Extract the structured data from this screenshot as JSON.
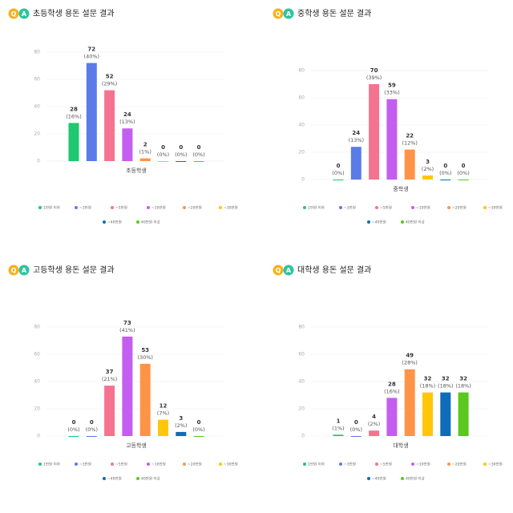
{
  "logo": {
    "q": "Q",
    "a": "A"
  },
  "chart_data": [
    {
      "type": "bar",
      "title": "초등학생 용돈 설문 결과",
      "x_label": "초등학생",
      "categories": [
        "1만원 이하",
        "~3만원",
        "~5만원",
        "~10만원",
        "~20만원",
        "~30만원",
        "~40만원",
        "40만원 이상"
      ],
      "colors": [
        "#1ec86e",
        "#5b7be8",
        "#f5738f",
        "#c45ef0",
        "#ff9447",
        "#ffc60a",
        "#0e6cb8",
        "#5ac81e"
      ],
      "values": [
        28,
        72,
        52,
        24,
        2,
        0,
        0,
        0
      ],
      "percent_labels": [
        "(16%)",
        "(40%)",
        "(29%)",
        "(13%)",
        "(1%)",
        "(0%)",
        "(0%)",
        "(0%)"
      ],
      "ylim": [
        0,
        80
      ],
      "yticks": [
        0,
        20,
        40,
        60,
        80
      ],
      "grid": true
    },
    {
      "type": "bar",
      "title": "중학생 용돈 설문 결과",
      "x_label": "중학생",
      "categories": [
        "1만원 이하",
        "~3만원",
        "~5만원",
        "~10만원",
        "~20만원",
        "~30만원",
        "~40만원",
        "40만원 이상"
      ],
      "colors": [
        "#1ec86e",
        "#5b7be8",
        "#f5738f",
        "#c45ef0",
        "#ff9447",
        "#ffc60a",
        "#0e6cb8",
        "#5ac81e"
      ],
      "values": [
        0,
        24,
        70,
        59,
        22,
        3,
        0,
        0
      ],
      "percent_labels": [
        "(0%)",
        "(13%)",
        "(39%)",
        "(33%)",
        "(12%)",
        "(2%)",
        "(0%)",
        "(0%)"
      ],
      "ylim": [
        0,
        80
      ],
      "yticks": [
        0,
        20,
        40,
        60,
        80
      ],
      "grid": true
    },
    {
      "type": "bar",
      "title": "고등학생 용돈 설문 결과",
      "x_label": "고등학생",
      "categories": [
        "1만원 이하",
        "~3만원",
        "~5만원",
        "~10만원",
        "~20만원",
        "~30만원",
        "~40만원",
        "40만원 이상"
      ],
      "colors": [
        "#1ec86e",
        "#5b7be8",
        "#f5738f",
        "#c45ef0",
        "#ff9447",
        "#ffc60a",
        "#0e6cb8",
        "#5ac81e"
      ],
      "values": [
        0,
        0,
        37,
        73,
        53,
        12,
        3,
        0
      ],
      "percent_labels": [
        "(0%)",
        "(0%)",
        "(21%)",
        "(41%)",
        "(30%)",
        "(7%)",
        "(2%)",
        "(0%)"
      ],
      "ylim": [
        0,
        80
      ],
      "yticks": [
        0,
        20,
        40,
        60,
        80
      ],
      "grid": true
    },
    {
      "type": "bar",
      "title": "대학생 용돈 설문 결과",
      "x_label": "대학생",
      "categories": [
        "1만원 이하",
        "~3만원",
        "~5만원",
        "~10만원",
        "~20만원",
        "~30만원",
        "~40만원",
        "40만원 이상"
      ],
      "colors": [
        "#1ec86e",
        "#5b7be8",
        "#f5738f",
        "#c45ef0",
        "#ff9447",
        "#ffc60a",
        "#0e6cb8",
        "#5ac81e"
      ],
      "values": [
        1,
        0,
        4,
        28,
        49,
        32,
        32,
        32
      ],
      "percent_labels": [
        "(1%)",
        "(0%)",
        "(2%)",
        "(16%)",
        "(28%)",
        "(18%)",
        "(18%)",
        "(18%)"
      ],
      "ylim": [
        0,
        80
      ],
      "yticks": [
        0,
        20,
        40,
        60,
        80
      ],
      "grid": true
    }
  ]
}
